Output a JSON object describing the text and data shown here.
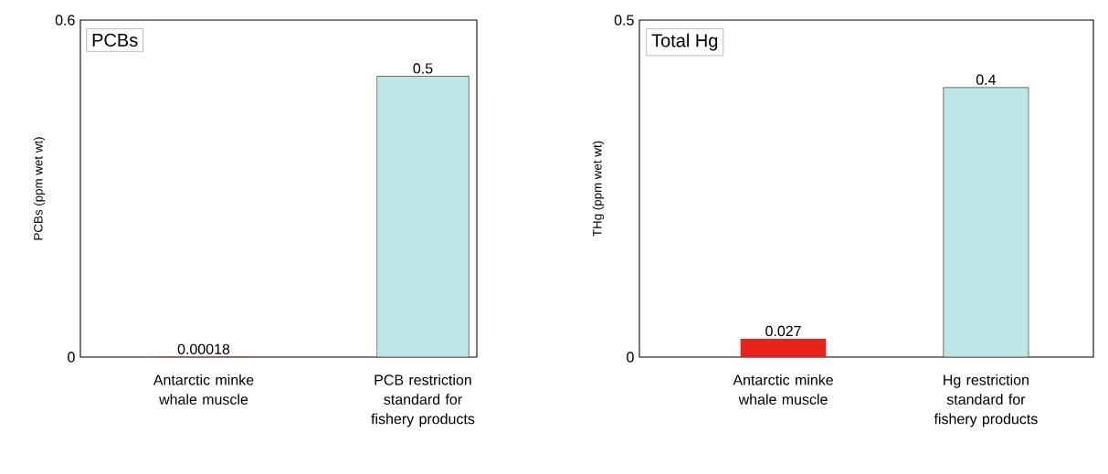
{
  "chart_data": [
    {
      "type": "bar",
      "categories": [
        "Antarctic minke whale muscle",
        "PCB restriction standard for fishery products"
      ],
      "values": [
        0.00018,
        0.5
      ],
      "colors": [
        "#e8231b",
        "#bfe6e6"
      ],
      "value_labels": [
        "0.00018",
        "0.5"
      ],
      "ylabel": "PCBs (ppm wet wt)",
      "ylim": [
        0,
        0.6
      ],
      "yticks": [
        0,
        0.6
      ],
      "annotations": [
        "PCBs"
      ]
    },
    {
      "type": "bar",
      "categories": [
        "Antarctic minke whale muscle",
        "Hg restriction standard for fishery products"
      ],
      "values": [
        0.027,
        0.4
      ],
      "colors": [
        "#e8231b",
        "#bfe6e6"
      ],
      "value_labels": [
        "0.027",
        "0.4"
      ],
      "ylabel": "THg (ppm wet wt)",
      "ylim": [
        0,
        0.5
      ],
      "yticks": [
        0,
        0.5
      ],
      "annotations": [
        "Total Hg"
      ]
    }
  ]
}
